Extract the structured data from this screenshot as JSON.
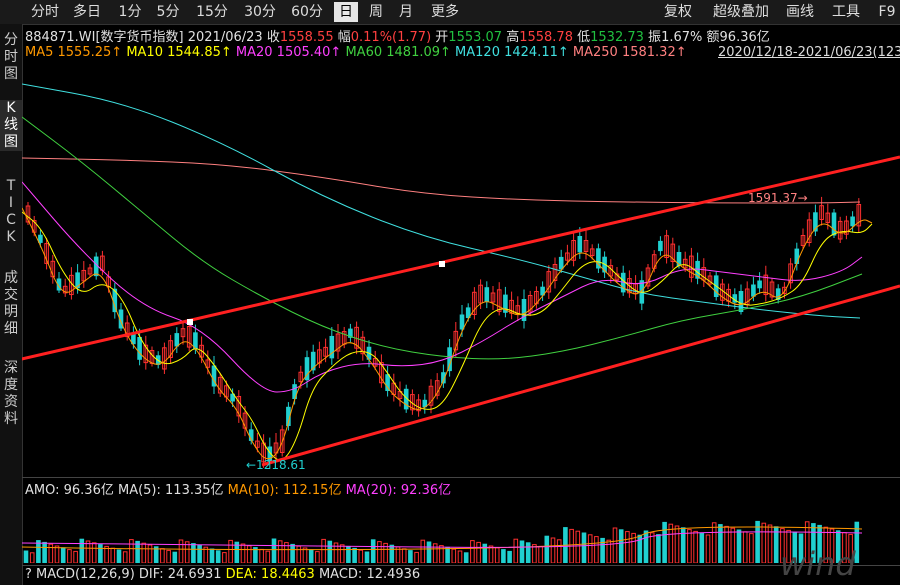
{
  "toolbar": {
    "tabs": [
      "分时",
      "多日",
      "1分",
      "5分",
      "15分",
      "30分",
      "60分",
      "日",
      "周",
      "月",
      "更多"
    ],
    "selected": "日",
    "right": [
      "复权",
      "超级叠加",
      "画线",
      "工具",
      "F9"
    ]
  },
  "side": {
    "items": [
      "分时图",
      "K线图",
      "TICK",
      "成交明细",
      "深度资料"
    ],
    "selected": "K线图"
  },
  "quote": {
    "code": "884871.WI[数字货币指数]",
    "date": "2021/06/23",
    "close_label": "收",
    "close": "1558.55",
    "chg_label": "幅",
    "chg": "0.11%(1.77)",
    "open_label": "开",
    "open": "1553.07",
    "high_label": "高",
    "high": "1558.78",
    "low_label": "低",
    "low": "1532.73",
    "amp_label": "振",
    "amp": "1.67%",
    "amt_label": "额",
    "amt": "96.36亿"
  },
  "ma": {
    "ma5": "MA5 1555.25↑",
    "ma10": "MA10 1544.85↑",
    "ma20": "MA20 1505.40↑",
    "ma60": "MA60 1481.09↑",
    "ma120": "MA120 1424.11↑",
    "ma250": "MA250 1581.32↑"
  },
  "range": "2020/12/18-2021/06/23(123",
  "annotations": {
    "high_mark": "1591.37→",
    "low_mark": "←1218.61"
  },
  "volume": {
    "amo": "AMO: 96.36亿",
    "ma5": "MA(5): 113.35亿",
    "ma10": "MA(10): 112.15亿",
    "ma20": "MA(20): 92.36亿"
  },
  "macd": {
    "q": "?",
    "label": "MACD(12,26,9)",
    "dif": "DIF: 24.6931",
    "dea": "DEA: 18.4463",
    "macd": "MACD: 12.4936"
  },
  "watermark": "wind",
  "colors": {
    "up": "#ff3030",
    "down": "#20d0d0",
    "ma5": "#ff9900",
    "ma10": "#ffff00",
    "ma20": "#ff40ff",
    "ma60": "#40d040",
    "ma120": "#40e0e0",
    "ma250": "#ff8080",
    "trend": "#ff2020"
  }
}
